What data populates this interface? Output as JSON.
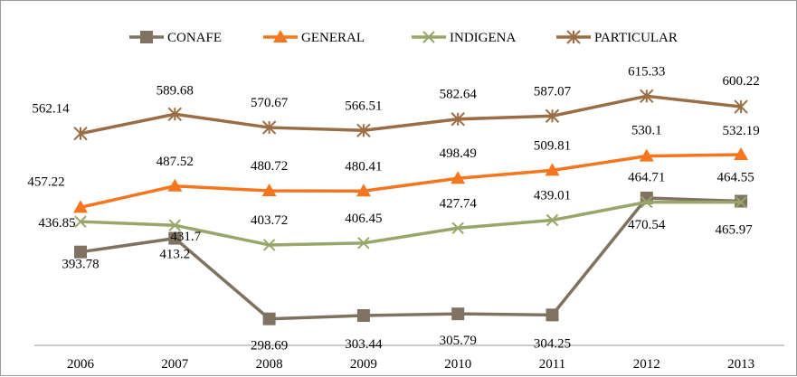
{
  "chart_data": {
    "type": "line",
    "categories": [
      "2006",
      "2007",
      "2008",
      "2009",
      "2010",
      "2011",
      "2012",
      "2013"
    ],
    "series": [
      {
        "name": "CONAFE",
        "color": "#7f7260",
        "marker": "square",
        "values": [
          393.78,
          413.2,
          298.69,
          303.44,
          305.79,
          304.25,
          470.54,
          465.97
        ],
        "labels": [
          "393.78",
          "413.2",
          "298.69",
          "303.44",
          "305.79",
          "304.25",
          "470.54",
          "465.97"
        ]
      },
      {
        "name": "GENERAL",
        "color": "#f5761f",
        "marker": "triangle",
        "values": [
          457.22,
          487.52,
          480.72,
          480.41,
          498.49,
          509.81,
          530.1,
          532.19
        ],
        "labels": [
          "457.22",
          "487.52",
          "480.72",
          "480.41",
          "498.49",
          "509.81",
          "530.1",
          "532.19"
        ]
      },
      {
        "name": "INDIGENA",
        "color": "#98a66a",
        "marker": "x",
        "values": [
          436.85,
          431.7,
          403.72,
          406.45,
          427.74,
          439.01,
          464.71,
          464.55
        ],
        "labels": [
          "436.85",
          "431.7",
          "403.72",
          "406.45",
          "427.74",
          "439.01",
          "464.71",
          "464.55"
        ]
      },
      {
        "name": "PARTICULAR",
        "color": "#9a6d45",
        "marker": "star",
        "values": [
          562.14,
          589.68,
          570.67,
          566.51,
          582.64,
          587.07,
          615.33,
          600.22
        ],
        "labels": [
          "562.14",
          "589.68",
          "570.67",
          "566.51",
          "582.64",
          "587.07",
          "615.33",
          "600.22"
        ]
      }
    ],
    "legend_position": "top",
    "grid": false,
    "title": "",
    "xlabel": "",
    "ylabel": ""
  }
}
